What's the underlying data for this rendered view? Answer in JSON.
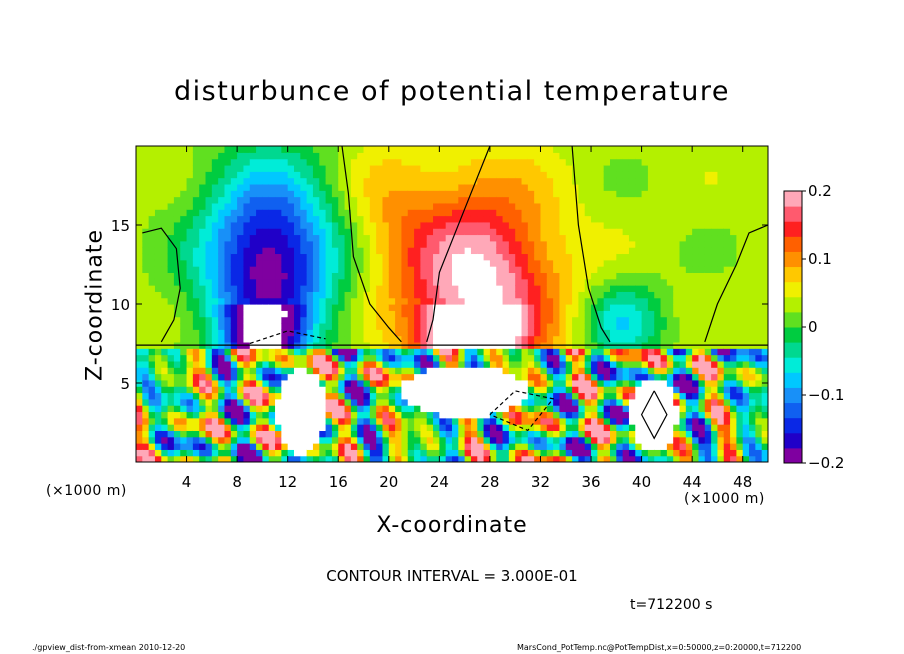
{
  "figure": {
    "title": "disturbunce of potential temperature",
    "contour_interval": "CONTOUR INTERVAL = 3.000E-01",
    "time_label": "t=712200 s",
    "footer_left": "./gpview_dist-from-xmean  2010-12-20",
    "footer_right": "MarsCond_PotTemp.nc@PotTempDist,x=0:50000,z=0:20000,t=712200"
  },
  "chart_data": {
    "type": "heatmap",
    "title": "disturbunce of potential temperature",
    "xlabel": "X-coordinate",
    "ylabel": "Z-coordinate",
    "x_unit_left": "(×1000 m)",
    "x_unit_right": "(×1000 m)",
    "xlim": [
      0,
      50
    ],
    "ylim": [
      0,
      20
    ],
    "x_ticks": [
      4,
      8,
      12,
      16,
      20,
      24,
      28,
      32,
      36,
      40,
      44,
      48
    ],
    "y_ticks": [
      5,
      10,
      15
    ],
    "colorbar": {
      "range": [
        -0.2,
        0.2
      ],
      "ticks": [
        "0.2",
        "0.1",
        "0",
        "−0.1",
        "−0.2"
      ],
      "tick_values": [
        0.2,
        0.1,
        0,
        -0.1,
        -0.2
      ],
      "colors": [
        "#7f00a0",
        "#2000c8",
        "#0a28e6",
        "#1060f0",
        "#1890f8",
        "#00c8ff",
        "#00ecd8",
        "#00d890",
        "#00cc40",
        "#60e020",
        "#b4f000",
        "#f0f000",
        "#ffc800",
        "#ff9000",
        "#ff6000",
        "#ff2020",
        "#ff5a6e",
        "#ffa8b8"
      ]
    },
    "contour_interval": 0.3,
    "features": [
      {
        "x": 11,
        "z": 13,
        "sign": "negative",
        "value": -0.2
      },
      {
        "x": 27,
        "z": 11,
        "sign": "positive",
        "value": 0.15
      },
      {
        "x": 39,
        "z": 9,
        "sign": "negative",
        "value": -0.08
      }
    ],
    "grid": false,
    "legend": "colorbar-right"
  }
}
